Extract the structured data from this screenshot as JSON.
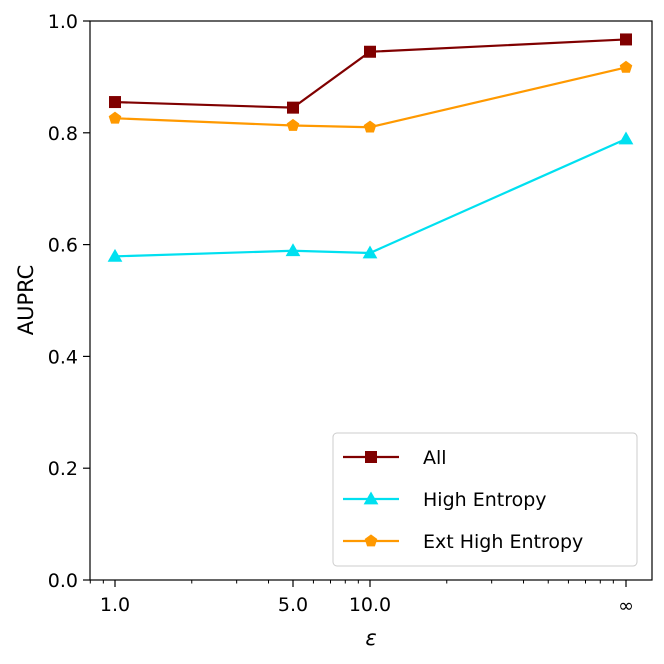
{
  "chart_data": {
    "type": "line",
    "title": "",
    "xlabel": "ε",
    "ylabel": "AUPRC",
    "x_scale": "log",
    "categories": [
      "1.0",
      "5.0",
      "10.0",
      "∞"
    ],
    "x_tick_labels": [
      "1.0",
      "5.0",
      "10.0",
      "∞"
    ],
    "ylim": [
      0.0,
      1.0
    ],
    "y_ticks": [
      0.0,
      0.2,
      0.4,
      0.6,
      0.8,
      1.0
    ],
    "y_tick_labels": [
      "0.0",
      "0.2",
      "0.4",
      "0.6",
      "0.8",
      "1.0"
    ],
    "grid": false,
    "legend_position": "lower-right",
    "series": [
      {
        "name": "All",
        "color": "#800000",
        "marker": "square",
        "values": [
          0.855,
          0.845,
          0.945,
          0.967
        ]
      },
      {
        "name": "High Entropy",
        "color": "#00e0f0",
        "marker": "triangle",
        "values": [
          0.579,
          0.589,
          0.585,
          0.789
        ]
      },
      {
        "name": "Ext High Entropy",
        "color": "#ff9900",
        "marker": "pentagon",
        "values": [
          0.826,
          0.813,
          0.81,
          0.917
        ]
      }
    ]
  }
}
